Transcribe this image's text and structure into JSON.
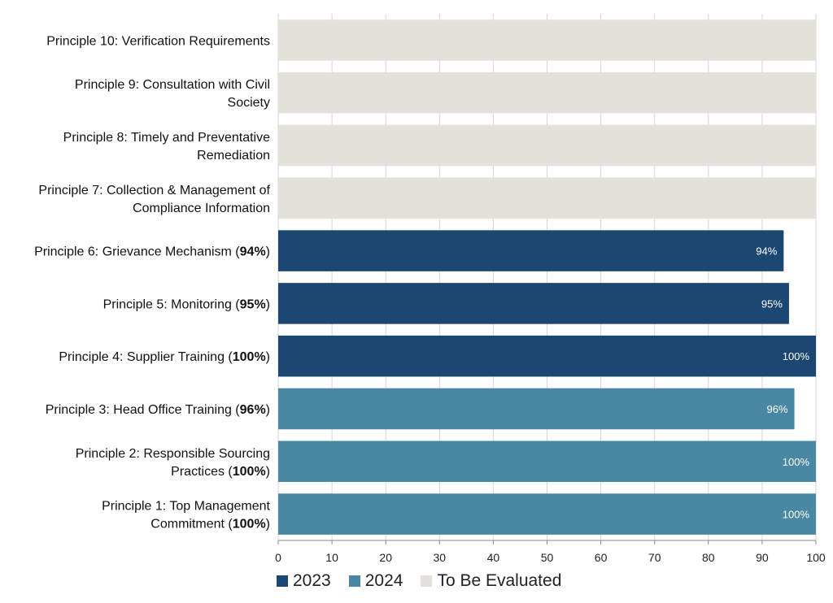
{
  "chart_data": {
    "type": "bar",
    "orientation": "horizontal",
    "title": "",
    "xlabel": "",
    "ylabel": "",
    "xlim": [
      0,
      100
    ],
    "xticks": [
      0,
      10,
      20,
      30,
      40,
      50,
      60,
      70,
      80,
      90,
      100
    ],
    "grid": "vertical",
    "legend_position": "bottom-left",
    "colors": {
      "2023": "#1b4872",
      "2024": "#4a87a3",
      "tbe": "#e4e1da"
    },
    "categories": [
      {
        "label": "Principle 10: Verification Requirements",
        "value": 100,
        "group": "tbe",
        "show_label": false
      },
      {
        "label": "Principle 9: Consultation with Civil Society",
        "value": 100,
        "group": "tbe",
        "show_label": false
      },
      {
        "label": "Principle 8: Timely and Preventative Remediation",
        "value": 100,
        "group": "tbe",
        "show_label": false
      },
      {
        "label": "Principle 7: Collection & Management of Compliance Information",
        "value": 100,
        "group": "tbe",
        "show_label": false
      },
      {
        "label": "Principle 6: Grievance Mechanism (94%)",
        "value": 94,
        "group": "2023",
        "show_label": true
      },
      {
        "label": "Principle 5: Monitoring (95%)",
        "value": 95,
        "group": "2023",
        "show_label": true
      },
      {
        "label": "Principle 4: Supplier Training (100%)",
        "value": 100,
        "group": "2023",
        "show_label": true
      },
      {
        "label": "Principle 3: Head Office Training (96%)",
        "value": 96,
        "group": "2024",
        "show_label": true
      },
      {
        "label": "Principle 2: Responsible Sourcing Practices (100%)",
        "value": 100,
        "group": "2024",
        "show_label": true
      },
      {
        "label": "Principle 1: Top Management Commitment (100%)",
        "value": 100,
        "group": "2024",
        "show_label": true
      }
    ],
    "label_lines": [
      [
        [
          "Principle 10: Verification Requirements",
          ""
        ]
      ],
      [
        [
          "Principle 9: Consultation with Civil",
          ""
        ],
        [
          "Society",
          ""
        ]
      ],
      [
        [
          "Principle 8: Timely and Preventative",
          ""
        ],
        [
          "Remediation",
          ""
        ]
      ],
      [
        [
          "Principle 7: Collection & Management of",
          ""
        ],
        [
          "Compliance Information",
          ""
        ]
      ],
      [
        [
          "Principle 6: Grievance Mechanism (",
          "94%",
          ")"
        ]
      ],
      [
        [
          "Principle 5: Monitoring (",
          "95%",
          ")"
        ]
      ],
      [
        [
          "Principle 4: Supplier Training (",
          "100%",
          ")"
        ]
      ],
      [
        [
          "Principle 3: Head Office Training (",
          "96%",
          ")"
        ]
      ],
      [
        [
          "Principle 2: Responsible Sourcing",
          ""
        ],
        [
          "Practices (",
          "100%",
          ")"
        ]
      ],
      [
        [
          "Principle 1: Top Management",
          ""
        ],
        [
          "Commitment (",
          "100%",
          ")"
        ]
      ]
    ]
  },
  "legend": [
    {
      "label": "2023",
      "color": "#1b4872"
    },
    {
      "label": "2024",
      "color": "#4a87a3"
    },
    {
      "label": "To Be Evaluated",
      "color": "#e4e1da"
    }
  ]
}
